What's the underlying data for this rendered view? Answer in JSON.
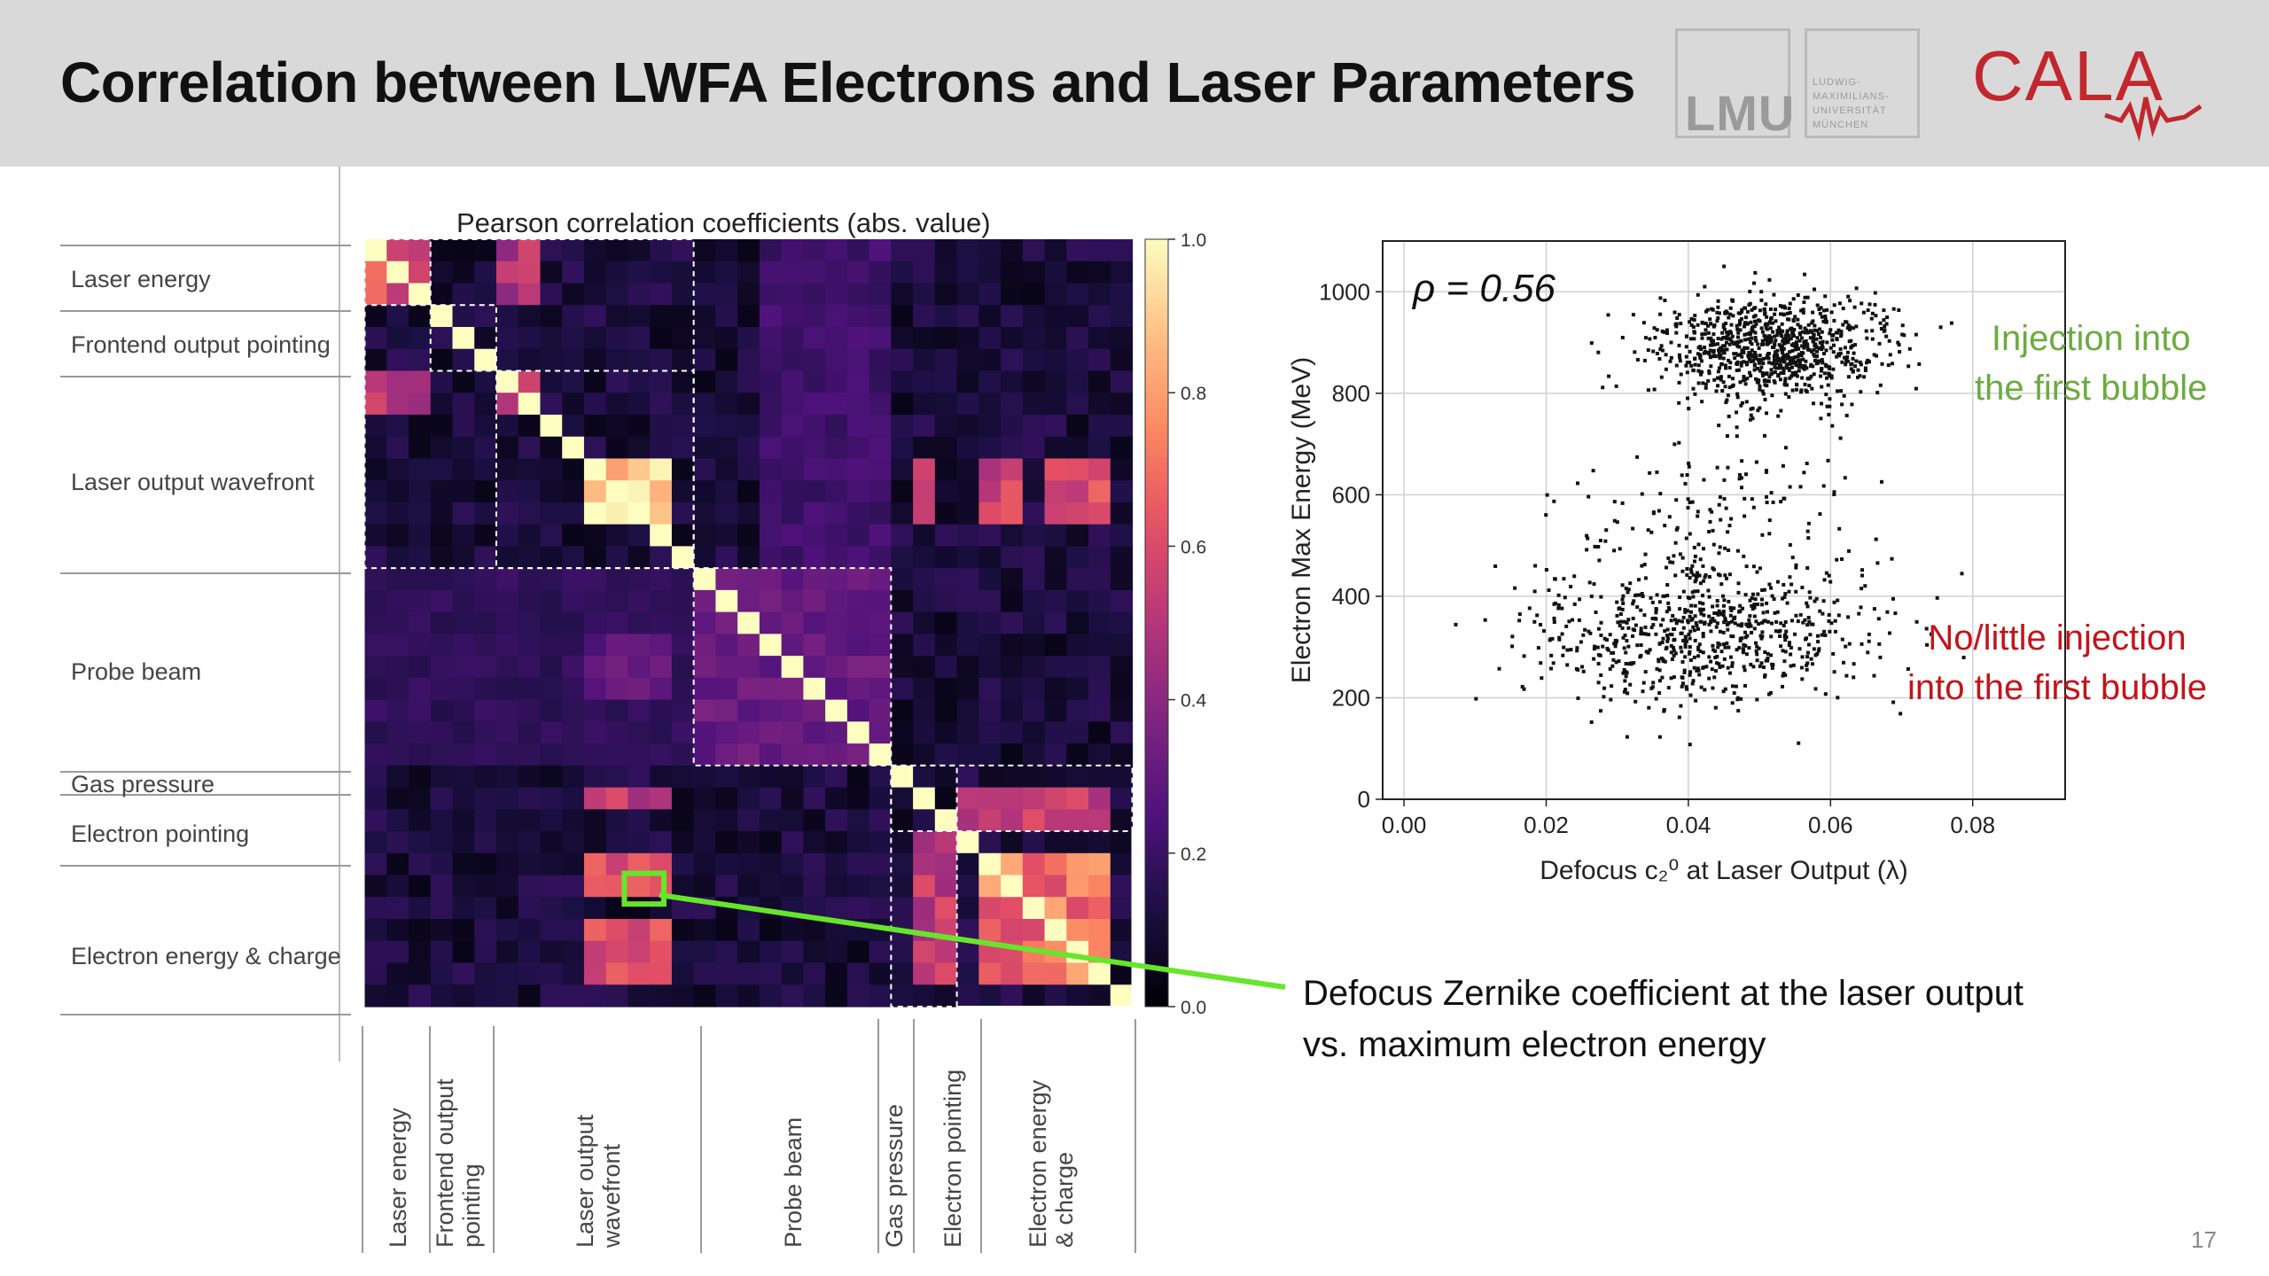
{
  "slide": {
    "title": "Correlation between LWFA Electrons and Laser Parameters",
    "page_number": "17"
  },
  "logos": {
    "lmu": "LMU",
    "lmu_small": [
      "LUDWIG-",
      "MAXIMILIANS-",
      "UNIVERSITÄT",
      "MÜNCHEN"
    ],
    "cala": "CALA",
    "lmu_color": "#9a9a9a",
    "cala_color": "#c1272d"
  },
  "groups": {
    "row_labels": [
      "Laser energy",
      "Frontend output pointing",
      "Laser output wavefront",
      "Probe beam",
      "Gas pressure",
      "Electron pointing",
      "Electron energy & charge"
    ],
    "col_labels": [
      [
        "Laser energy"
      ],
      [
        "Frontend output",
        "pointing"
      ],
      [
        "Laser output",
        "wavefront"
      ],
      [
        "Probe beam"
      ],
      [
        "Gas pressure"
      ],
      [
        "Electron pointing"
      ],
      [
        "Electron energy",
        "& charge"
      ]
    ]
  },
  "annotations": {
    "green_text": [
      "Injection into",
      "the first bubble"
    ],
    "red_text": [
      "No/little injection",
      "into the first bubble"
    ],
    "callout": [
      "Defocus Zernike coefficient at the laser output",
      "vs. maximum electron energy"
    ],
    "green_color": "#6aac3f",
    "red_color": "#c3141a",
    "highlight_color": "#66e62b"
  },
  "chart_data": [
    {
      "type": "heatmap",
      "title": "Pearson correlation coefficients (abs. value)",
      "colorscale": "magma",
      "zlim": [
        0,
        1
      ],
      "colorbar_ticks": [
        "0.0",
        "0.2",
        "0.4",
        "0.6",
        "0.8",
        "1.0"
      ],
      "size": 35,
      "group_boundaries": [
        0,
        3,
        6,
        15,
        24,
        27,
        35
      ],
      "blocks": [
        {
          "r": [
            0,
            3
          ],
          "c": [
            0,
            3
          ],
          "v": 0.62
        },
        {
          "r": [
            0,
            3
          ],
          "c": [
            6,
            8
          ],
          "v": 0.5
        },
        {
          "r": [
            6,
            8
          ],
          "c": [
            0,
            3
          ],
          "v": 0.52
        },
        {
          "r": [
            6,
            8
          ],
          "c": [
            6,
            8
          ],
          "v": 0.6
        },
        {
          "r": [
            10,
            13
          ],
          "c": [
            10,
            14
          ],
          "v": 0.92
        },
        {
          "r": [
            10,
            13
          ],
          "c": [
            25,
            26
          ],
          "v": 0.55
        },
        {
          "r": [
            10,
            13
          ],
          "c": [
            28,
            30
          ],
          "v": 0.58
        },
        {
          "r": [
            10,
            13
          ],
          "c": [
            31,
            34
          ],
          "v": 0.6
        },
        {
          "r": [
            25,
            26
          ],
          "c": [
            10,
            14
          ],
          "v": 0.55
        },
        {
          "r": [
            28,
            30
          ],
          "c": [
            10,
            14
          ],
          "v": 0.62
        },
        {
          "r": [
            31,
            34
          ],
          "c": [
            10,
            14
          ],
          "v": 0.65
        },
        {
          "r": [
            28,
            34
          ],
          "c": [
            28,
            34
          ],
          "v": 0.72
        },
        {
          "r": [
            27,
            34
          ],
          "c": [
            25,
            27
          ],
          "v": 0.55
        },
        {
          "r": [
            25,
            27
          ],
          "c": [
            27,
            34
          ],
          "v": 0.55
        },
        {
          "r": [
            15,
            24
          ],
          "c": [
            15,
            24
          ],
          "v": 0.32
        },
        {
          "r": [
            18,
            21
          ],
          "c": [
            10,
            14
          ],
          "v": 0.3
        },
        {
          "r": [
            0,
            15
          ],
          "c": [
            18,
            24
          ],
          "v": 0.22
        },
        {
          "r": [
            15,
            24
          ],
          "c": [
            0,
            15
          ],
          "v": 0.18
        }
      ],
      "highlight_cell": {
        "row": 29,
        "col": 12,
        "value": 0.56
      }
    },
    {
      "type": "scatter",
      "xlabel": "Defocus c₂⁰ at Laser Output (λ)",
      "ylabel": "Electron Max Energy (MeV)",
      "xlim": [
        -0.003,
        0.093
      ],
      "ylim": [
        0,
        1100
      ],
      "xticks": [
        "0.00",
        "0.02",
        "0.04",
        "0.06",
        "0.08"
      ],
      "yticks": [
        "0",
        "200",
        "400",
        "600",
        "800",
        "1000"
      ],
      "grid": true,
      "annotation": "ρ = 0.56",
      "clusters": [
        {
          "x_mean": 0.052,
          "x_sd": 0.008,
          "y_mean": 890,
          "y_sd": 50,
          "n": 900
        },
        {
          "x_mean": 0.042,
          "x_sd": 0.011,
          "y_mean": 330,
          "y_sd": 75,
          "n": 750
        },
        {
          "x_mean": 0.045,
          "x_sd": 0.01,
          "y_mean": 600,
          "y_sd": 100,
          "n": 140
        }
      ]
    }
  ]
}
